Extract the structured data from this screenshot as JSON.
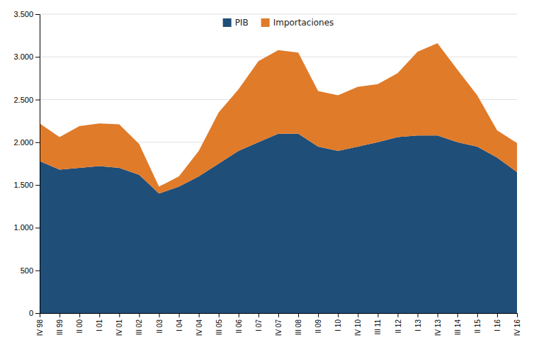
{
  "chart_data": {
    "type": "area",
    "stacked": true,
    "categories": [
      "IV 98",
      "III 99",
      "II 00",
      "I 01",
      "IV 01",
      "III 02",
      "II 03",
      "I 04",
      "IV 04",
      "III 05",
      "II 06",
      "I 07",
      "IV 07",
      "III 08",
      "II 09",
      "I 10",
      "IV 10",
      "III 11",
      "II 12",
      "I 13",
      "IV 13",
      "III 14",
      "II 15",
      "I 16",
      "IV 16"
    ],
    "series": [
      {
        "name": "PIB",
        "color": "#1F4E79",
        "values": [
          1780,
          1680,
          1700,
          1720,
          1700,
          1620,
          1400,
          1480,
          1600,
          1750,
          1900,
          2000,
          2100,
          2100,
          1950,
          1900,
          1950,
          2000,
          2060,
          2080,
          2080,
          2000,
          1950,
          1820,
          1650
        ]
      },
      {
        "name": "Importaciones",
        "color": "#E07B2A",
        "values": [
          440,
          380,
          490,
          500,
          510,
          360,
          80,
          120,
          300,
          600,
          720,
          950,
          980,
          950,
          650,
          650,
          700,
          680,
          750,
          980,
          1080,
          850,
          600,
          320,
          340
        ]
      }
    ],
    "ylim": [
      0,
      3500
    ],
    "yticks": [
      0,
      500,
      {
        "value": 1000,
        "label": "1.000"
      },
      {
        "value": 1500,
        "label": "1.500"
      },
      {
        "value": 2000,
        "label": "2.000"
      },
      {
        "value": 2500,
        "label": "2.500"
      },
      {
        "value": 3000,
        "label": "3.000"
      },
      {
        "value": 3500,
        "label": "3.500"
      }
    ],
    "grid": true,
    "legend": "upper center"
  }
}
